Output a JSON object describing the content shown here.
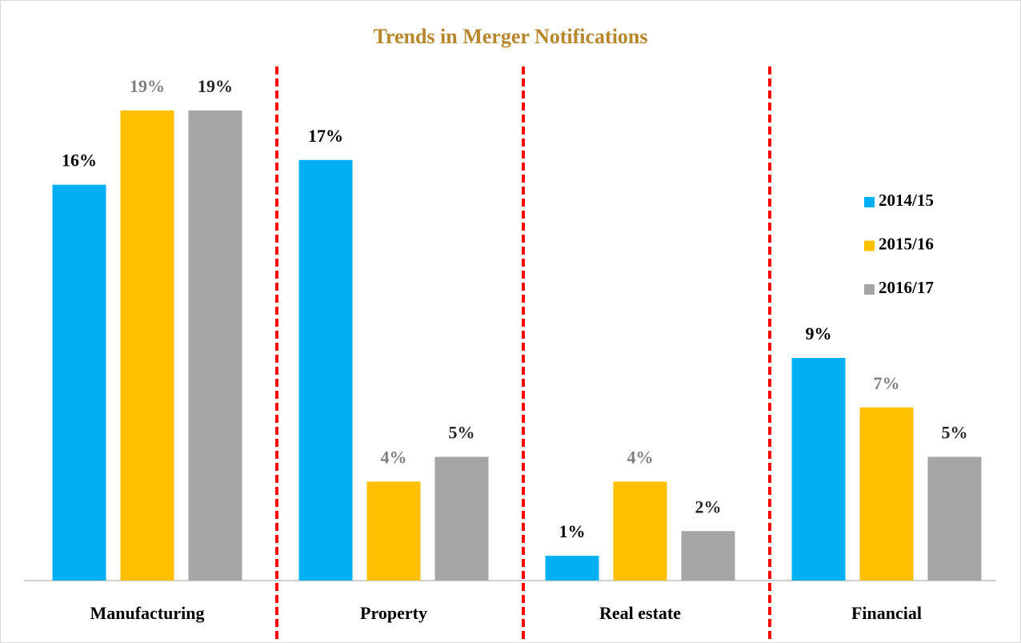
{
  "chart_data": {
    "type": "bar",
    "title": "Trends in Merger Notifications",
    "categories": [
      "Manufacturing",
      "Property",
      "Real estate",
      "Financial"
    ],
    "series": [
      {
        "name": "2014/15",
        "color": "#00b0f0",
        "label_color": "#000000",
        "values": [
          16,
          17,
          1,
          9
        ],
        "value_labels": [
          "16%",
          "17%",
          "1%",
          "9%"
        ]
      },
      {
        "name": "2015/16",
        "color": "#ffc000",
        "label_color": "#7f7f7f",
        "values": [
          19,
          4,
          4,
          7
        ],
        "value_labels": [
          "19%",
          "4%",
          "4%",
          "7%"
        ]
      },
      {
        "name": "2016/17",
        "color": "#a5a5a5",
        "label_color": "#262626",
        "values": [
          19,
          5,
          2,
          5
        ],
        "value_labels": [
          "19%",
          "5%",
          "2%",
          "5%"
        ]
      }
    ],
    "legend": "right"
  }
}
